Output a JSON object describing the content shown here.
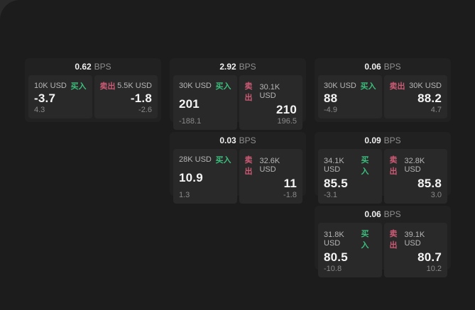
{
  "labels": {
    "buy": "买入",
    "sell": "卖出",
    "bps_unit": "BPS"
  },
  "colors": {
    "buy_green": "#3dbd7d",
    "sell_red": "#cd5a75",
    "page_background": "#2a2a2a",
    "panel_background": "#1c1c1c",
    "card_background": "#212121",
    "tile_background": "#292929"
  },
  "cards": [
    {
      "row": 1,
      "col": 1,
      "bps": "0.62",
      "buy": {
        "size": "10K USD",
        "price": "-3.7",
        "delta": "4.3"
      },
      "sell": {
        "size": "5.5K USD",
        "price": "-1.8",
        "delta": "-2.6"
      }
    },
    {
      "row": 1,
      "col": 2,
      "bps": "2.92",
      "buy": {
        "size": "30K USD",
        "price": "201",
        "delta": "-188.1"
      },
      "sell": {
        "size": "30.1K USD",
        "price": "210",
        "delta": "196.5"
      }
    },
    {
      "row": 1,
      "col": 3,
      "bps": "0.06",
      "buy": {
        "size": "30K USD",
        "price": "88",
        "delta": "-4.9"
      },
      "sell": {
        "size": "30K USD",
        "price": "88.2",
        "delta": "4.7"
      }
    },
    {
      "row": 2,
      "col": 2,
      "bps": "0.03",
      "buy": {
        "size": "28K USD",
        "price": "10.9",
        "delta": "1.3"
      },
      "sell": {
        "size": "32.6K USD",
        "price": "11",
        "delta": "-1.8"
      }
    },
    {
      "row": 2,
      "col": 3,
      "bps": "0.09",
      "buy": {
        "size": "34.1K USD",
        "price": "85.5",
        "delta": "-3.1"
      },
      "sell": {
        "size": "32.8K USD",
        "price": "85.8",
        "delta": "3.0"
      }
    },
    {
      "row": 3,
      "col": 3,
      "bps": "0.06",
      "buy": {
        "size": "31.8K USD",
        "price": "80.5",
        "delta": "-10.8"
      },
      "sell": {
        "size": "39.1K USD",
        "price": "80.7",
        "delta": "10.2"
      }
    }
  ]
}
